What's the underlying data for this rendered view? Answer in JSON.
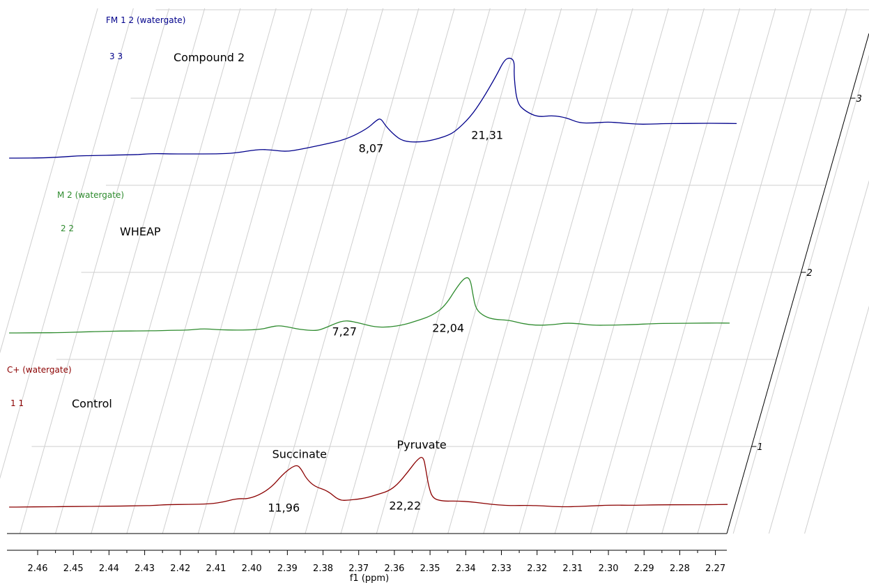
{
  "chart_data": {
    "type": "line",
    "xlabel": "f1 (ppm)",
    "x_ticks": [
      "2.46",
      "2.45",
      "2.44",
      "2.43",
      "2.42",
      "2.41",
      "2.40",
      "2.39",
      "2.38",
      "2.37",
      "2.36",
      "2.35",
      "2.34",
      "2.33",
      "2.32",
      "2.31",
      "2.30",
      "2.29",
      "2.28",
      "2.27"
    ],
    "x_range": [
      2.4686,
      2.2668
    ],
    "x_reversed": true,
    "z_ticks": [
      "1",
      "2",
      "3"
    ],
    "grid": true,
    "series": [
      {
        "id": "spectrum-1",
        "name": "C+ (watergate)",
        "index_label": "1 1",
        "title": "Control",
        "color": "#8b0000",
        "points": [
          [
            2.468,
            0
          ],
          [
            2.464,
            0.1
          ],
          [
            2.458,
            0.5
          ],
          [
            2.453,
            0.8
          ],
          [
            2.447,
            1.1
          ],
          [
            2.443,
            1.3
          ],
          [
            2.437,
            1.7
          ],
          [
            2.431,
            2.4
          ],
          [
            2.428,
            2.6
          ],
          [
            2.424,
            4.3
          ],
          [
            2.418,
            4.5
          ],
          [
            2.412,
            5.2
          ],
          [
            2.408,
            9.0
          ],
          [
            2.406,
            13.0
          ],
          [
            2.404,
            14.5
          ],
          [
            2.402,
            14.0
          ],
          [
            2.399,
            20
          ],
          [
            2.396,
            34
          ],
          [
            2.394,
            55
          ],
          [
            2.392,
            68
          ],
          [
            2.3905,
            72
          ],
          [
            2.389,
            64
          ],
          [
            2.387,
            49
          ],
          [
            2.384,
            35
          ],
          [
            2.38,
            28
          ],
          [
            2.376,
            11
          ],
          [
            2.373,
            12.0
          ],
          [
            2.369,
            15
          ],
          [
            2.366,
            21
          ],
          [
            2.363,
            27
          ],
          [
            2.361,
            38
          ],
          [
            2.359,
            60
          ],
          [
            2.3575,
            80
          ],
          [
            2.356,
            88
          ],
          [
            2.354,
            62
          ],
          [
            2.352,
            35
          ],
          [
            2.35,
            15
          ],
          [
            2.347,
            10
          ],
          [
            2.343,
            10.5
          ],
          [
            2.339,
            9.0
          ],
          [
            2.335,
            6.2
          ],
          [
            2.331,
            3.4
          ],
          [
            2.327,
            2.5
          ],
          [
            2.323,
            3.0
          ],
          [
            2.318,
            1.9
          ],
          [
            2.315,
            0.7
          ],
          [
            2.311,
            0.5
          ],
          [
            2.306,
            1.7
          ],
          [
            2.299,
            3.5
          ],
          [
            2.294,
            3.0
          ],
          [
            2.286,
            3.8
          ],
          [
            2.279,
            4.1
          ],
          [
            2.272,
            4.1
          ],
          [
            2.2668,
            4.5
          ]
        ],
        "labels": [
          {
            "text": "Succinate",
            "x": 2.3905,
            "level": 84
          },
          {
            "text": "Pyruvate",
            "x": 2.357,
            "level": 100
          },
          {
            "text": "11,96",
            "x": 2.391,
            "level": -8
          },
          {
            "text": "22,22",
            "x": 2.357,
            "level": -4
          }
        ]
      },
      {
        "id": "spectrum-2",
        "name": "M 2 (watergate)",
        "index_label": "2 2",
        "title": "WHEAP",
        "color": "#2e8b2e",
        "points": [
          [
            2.468,
            0
          ],
          [
            2.464,
            0.1
          ],
          [
            2.459,
            0.3
          ],
          [
            2.454,
            0.5
          ],
          [
            2.448,
            1.6
          ],
          [
            2.443,
            2.5
          ],
          [
            2.437,
            3.2
          ],
          [
            2.431,
            3.5
          ],
          [
            2.426,
            3.8
          ],
          [
            2.423,
            4.6
          ],
          [
            2.418,
            4.7
          ],
          [
            2.414,
            7.4
          ],
          [
            2.41,
            5.6
          ],
          [
            2.404,
            4.7
          ],
          [
            2.398,
            5.8
          ],
          [
            2.395,
            10.5
          ],
          [
            2.393,
            12.7
          ],
          [
            2.39,
            10.0
          ],
          [
            2.387,
            6.0
          ],
          [
            2.382,
            3.6
          ],
          [
            2.38,
            8.0
          ],
          [
            2.377,
            17.0
          ],
          [
            2.375,
            21.0
          ],
          [
            2.373,
            20.0
          ],
          [
            2.37,
            16.0
          ],
          [
            2.366,
            10.2
          ],
          [
            2.362,
            9.8
          ],
          [
            2.358,
            14.0
          ],
          [
            2.355,
            20.0
          ],
          [
            2.351,
            29.0
          ],
          [
            2.348,
            45.0
          ],
          [
            2.346,
            80.0
          ],
          [
            2.3445,
            96.0
          ],
          [
            2.343,
            92.0
          ],
          [
            2.341,
            65.0
          ],
          [
            2.339,
            40.0
          ],
          [
            2.336,
            28.0
          ],
          [
            2.333,
            23.0
          ],
          [
            2.329,
            22.0
          ],
          [
            2.325,
            16.0
          ],
          [
            2.321,
            13.0
          ],
          [
            2.316,
            14.0
          ],
          [
            2.313,
            17.0
          ],
          [
            2.309,
            15.8
          ],
          [
            2.305,
            13.0
          ],
          [
            2.299,
            13.4
          ],
          [
            2.294,
            14.2
          ],
          [
            2.288,
            16.0
          ],
          [
            2.283,
            16.3
          ],
          [
            2.276,
            16.8
          ],
          [
            2.27,
            17.0
          ],
          [
            2.2668,
            16.8
          ]
        ],
        "labels": [
          {
            "text": "7,27",
            "x": 2.374,
            "level": -4
          },
          {
            "text": "22,04",
            "x": 2.345,
            "level": 2
          }
        ]
      },
      {
        "id": "spectrum-3",
        "name": "FM 1 2 (watergate)",
        "index_label": "3 3",
        "title": "Compound 2",
        "color": "#00008b",
        "points": [
          [
            2.468,
            0
          ],
          [
            2.464,
            0.1
          ],
          [
            2.46,
            0.2
          ],
          [
            2.454,
            1.5
          ],
          [
            2.449,
            4.0
          ],
          [
            2.444,
            4.3
          ],
          [
            2.438,
            5.3
          ],
          [
            2.433,
            6.0
          ],
          [
            2.431,
            6.5
          ],
          [
            2.428,
            7.7
          ],
          [
            2.423,
            7.2
          ],
          [
            2.418,
            7.1
          ],
          [
            2.41,
            7.2
          ],
          [
            2.405,
            8.6
          ],
          [
            2.399,
            15.0
          ],
          [
            2.395,
            14.0
          ],
          [
            2.391,
            11.0
          ],
          [
            2.387,
            15.0
          ],
          [
            2.381,
            23.0
          ],
          [
            2.375,
            32.0
          ],
          [
            2.37,
            50.0
          ],
          [
            2.368,
            65.0
          ],
          [
            2.367,
            68.0
          ],
          [
            2.365,
            55.0
          ],
          [
            2.362,
            40.0
          ],
          [
            2.359,
            29.0
          ],
          [
            2.355,
            27.0
          ],
          [
            2.351,
            30.0
          ],
          [
            2.347,
            38.0
          ],
          [
            2.345,
            46.0
          ],
          [
            2.342,
            70.0
          ],
          [
            2.34,
            100.0
          ],
          [
            2.338,
            140.0
          ],
          [
            2.337,
            168.0
          ],
          [
            2.3355,
            172.0
          ],
          [
            2.334,
            165.0
          ],
          [
            2.333,
            140.0
          ],
          [
            2.33,
            94.0
          ],
          [
            2.327,
            80.0
          ],
          [
            2.323,
            70.0
          ],
          [
            2.319,
            73.0
          ],
          [
            2.315,
            69.0
          ],
          [
            2.311,
            60.0
          ],
          [
            2.307,
            60.0
          ],
          [
            2.303,
            62.0
          ],
          [
            2.299,
            60.0
          ],
          [
            2.295,
            58.0
          ],
          [
            2.291,
            58.0
          ],
          [
            2.287,
            59.0
          ],
          [
            2.282,
            59.0
          ],
          [
            2.277,
            59.5
          ],
          [
            2.272,
            59.5
          ],
          [
            2.2668,
            59.0
          ]
        ],
        "labels": [
          {
            "text": "8,07",
            "x": 2.367,
            "level": 10
          },
          {
            "text": "21,31",
            "x": 2.3355,
            "level": 33
          }
        ]
      }
    ]
  }
}
